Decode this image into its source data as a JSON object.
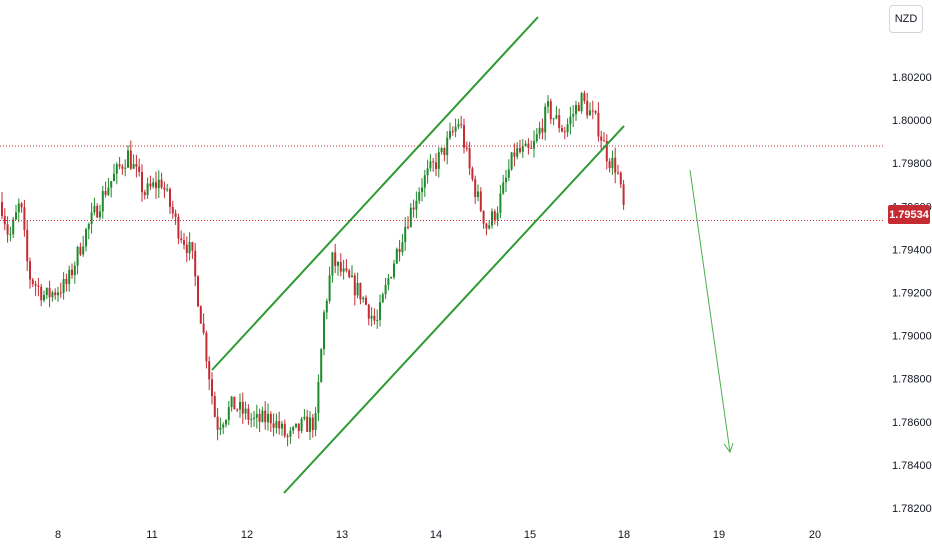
{
  "currency": "NZD",
  "colors": {
    "up": "#1f8a2d",
    "down": "#c42b33",
    "channel": "#2e9a32",
    "arrow": "#4caf50"
  },
  "chart_data": {
    "type": "candlestick",
    "x_ticks": [
      "8",
      "11",
      "12",
      "13",
      "14",
      "15",
      "18",
      "19",
      "20"
    ],
    "y_ticks": [
      "1.78200",
      "1.78400",
      "1.78600",
      "1.78800",
      "1.79000",
      "1.79200",
      "1.79400",
      "1.79600",
      "1.79800",
      "1.80000",
      "1.80200"
    ],
    "ylim": [
      1.7818,
      1.8032
    ],
    "last_price": "1.79534",
    "reference_line": 1.7988,
    "grid": false,
    "path": [
      [
        0.0,
        1.7962
      ],
      [
        0.15,
        1.7945
      ],
      [
        0.35,
        1.7962
      ],
      [
        0.5,
        1.7928
      ],
      [
        0.8,
        1.7918
      ],
      [
        1.2,
        1.7924
      ],
      [
        1.5,
        1.7946
      ],
      [
        1.9,
        1.7968
      ],
      [
        2.3,
        1.7984
      ],
      [
        2.6,
        1.7966
      ],
      [
        2.9,
        1.7972
      ],
      [
        3.2,
        1.795
      ],
      [
        3.45,
        1.7938
      ],
      [
        3.7,
        1.7895
      ],
      [
        3.9,
        1.7858
      ],
      [
        4.2,
        1.7868
      ],
      [
        4.6,
        1.786
      ],
      [
        4.9,
        1.7862
      ],
      [
        5.2,
        1.7852
      ],
      [
        5.45,
        1.7858
      ],
      [
        5.7,
        1.786
      ],
      [
        5.85,
        1.791
      ],
      [
        6.0,
        1.7935
      ],
      [
        6.2,
        1.7928
      ],
      [
        6.5,
        1.792
      ],
      [
        6.8,
        1.7905
      ],
      [
        7.0,
        1.7925
      ],
      [
        7.3,
        1.795
      ],
      [
        7.6,
        1.797
      ],
      [
        8.0,
        1.7985
      ],
      [
        8.3,
        1.8
      ],
      [
        8.5,
        1.7975
      ],
      [
        8.8,
        1.795
      ],
      [
        9.0,
        1.796
      ],
      [
        9.3,
        1.7985
      ],
      [
        9.6,
        1.7985
      ],
      [
        9.9,
        1.8005
      ],
      [
        10.2,
        1.7995
      ],
      [
        10.5,
        1.801
      ],
      [
        10.8,
        1.7998
      ],
      [
        11.0,
        1.7982
      ],
      [
        11.15,
        1.7978
      ],
      [
        11.3,
        1.7955
      ]
    ]
  }
}
